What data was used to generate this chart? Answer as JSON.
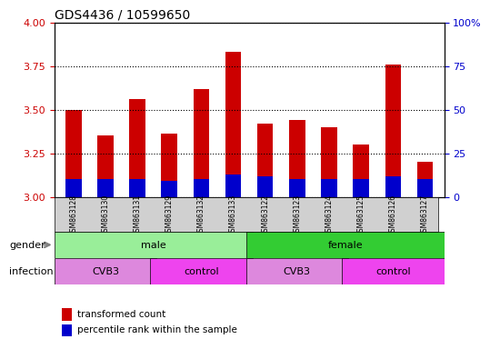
{
  "title": "GDS4436 / 10599650",
  "samples": [
    "GSM863128",
    "GSM863130",
    "GSM863131",
    "GSM863129",
    "GSM863132",
    "GSM863133",
    "GSM863122",
    "GSM863123",
    "GSM863124",
    "GSM863125",
    "GSM863126",
    "GSM863127"
  ],
  "transformed_count": [
    3.5,
    3.35,
    3.56,
    3.36,
    3.62,
    3.83,
    3.42,
    3.44,
    3.4,
    3.3,
    3.76,
    3.2
  ],
  "percentile_rank": [
    10,
    10,
    10,
    9,
    10,
    13,
    12,
    10,
    10,
    10,
    12,
    10
  ],
  "ylim_left": [
    3.0,
    4.0
  ],
  "ylim_right": [
    0,
    100
  ],
  "yticks_left": [
    3.0,
    3.25,
    3.5,
    3.75,
    4.0
  ],
  "yticks_right": [
    0,
    25,
    50,
    75,
    100
  ],
  "bar_color_red": "#cc0000",
  "bar_color_blue": "#0000cc",
  "grid_color": "black",
  "gender_groups": [
    {
      "label": "male",
      "start": 0,
      "end": 6,
      "color": "#99ee99"
    },
    {
      "label": "female",
      "start": 6,
      "end": 12,
      "color": "#33cc33"
    }
  ],
  "infection_groups": [
    {
      "label": "CVB3",
      "start": 0,
      "end": 3,
      "color": "#dd88dd"
    },
    {
      "label": "control",
      "start": 3,
      "end": 6,
      "color": "#ee44ee"
    },
    {
      "label": "CVB3",
      "start": 6,
      "end": 9,
      "color": "#dd88dd"
    },
    {
      "label": "control",
      "start": 9,
      "end": 12,
      "color": "#ee44ee"
    }
  ],
  "legend_items": [
    {
      "label": "transformed count",
      "color": "#cc0000"
    },
    {
      "label": "percentile rank within the sample",
      "color": "#0000cc"
    }
  ],
  "bar_width": 0.5,
  "base_value": 3.0,
  "percentile_scale": 0.04
}
